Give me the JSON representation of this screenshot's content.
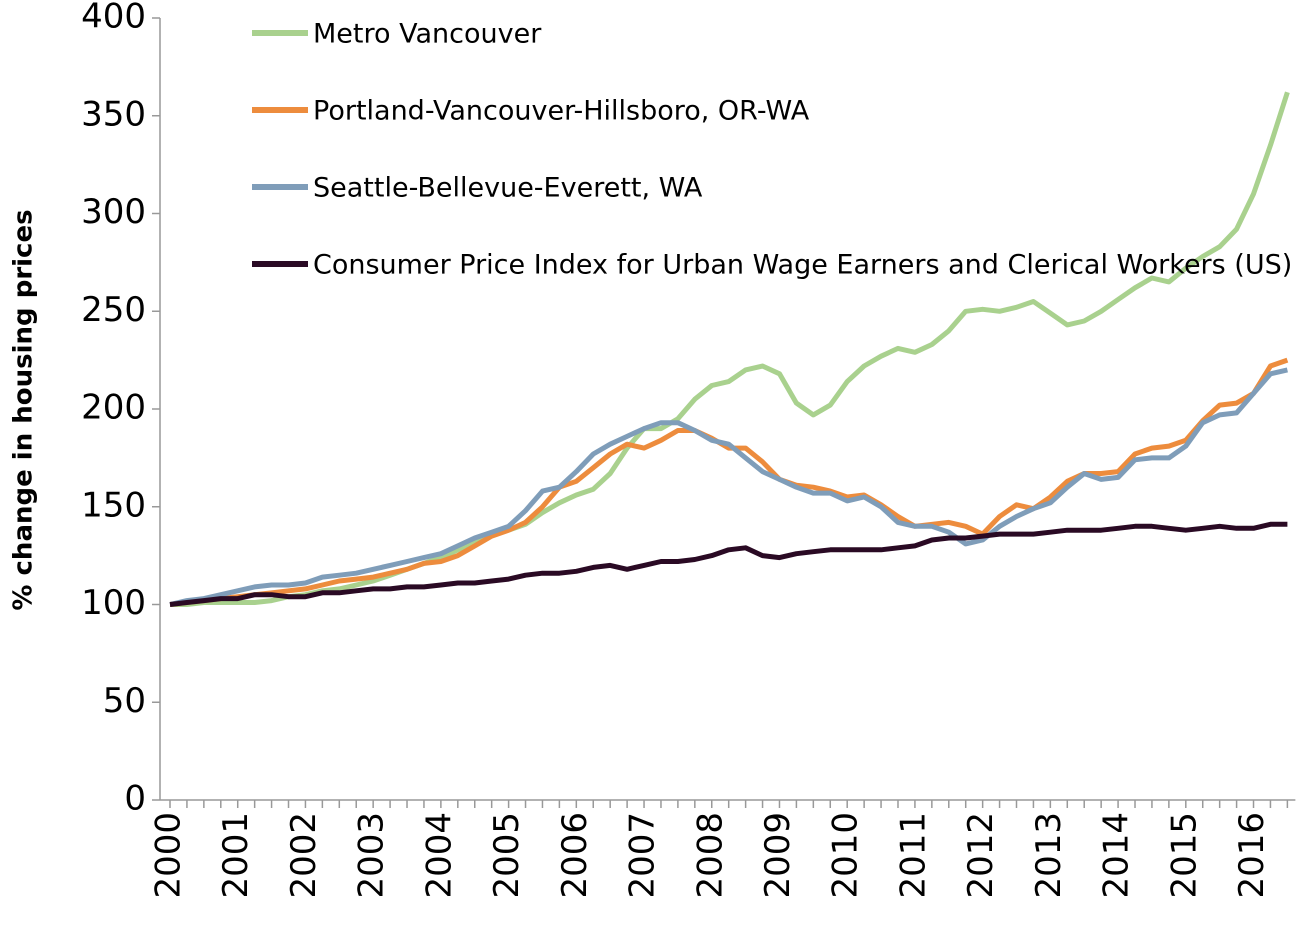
{
  "chart_data": {
    "type": "line",
    "y_label": "% change in housing prices",
    "categories": [
      "2000",
      null,
      null,
      null,
      "2001",
      null,
      null,
      null,
      "2002",
      null,
      null,
      null,
      "2003",
      null,
      null,
      null,
      "2004",
      null,
      null,
      null,
      "2005",
      null,
      null,
      null,
      "2006",
      null,
      null,
      null,
      "2007",
      null,
      null,
      null,
      "2008",
      null,
      null,
      null,
      "2009",
      null,
      null,
      null,
      "2010",
      null,
      null,
      null,
      "2011",
      null,
      null,
      null,
      "2012",
      null,
      null,
      null,
      "2013",
      null,
      null,
      null,
      "2014",
      null,
      null,
      null,
      "2015",
      null,
      null,
      null,
      "2016",
      null,
      null
    ],
    "ylim": [
      0,
      400
    ],
    "yticks": [
      0,
      50,
      100,
      150,
      200,
      250,
      300,
      350,
      400
    ],
    "grid": false,
    "series": [
      {
        "name": "Metro Vancouver",
        "color": "#a9d18e",
        "values": [
          100,
          100,
          101,
          101,
          101,
          101,
          102,
          104,
          105,
          107,
          108,
          110,
          112,
          115,
          118,
          121,
          124,
          128,
          132,
          136,
          138,
          141,
          147,
          152,
          156,
          159,
          167,
          180,
          190,
          190,
          195,
          205,
          212,
          214,
          220,
          222,
          218,
          203,
          197,
          202,
          214,
          222,
          227,
          231,
          229,
          233,
          240,
          250,
          251,
          250,
          252,
          255,
          249,
          243,
          245,
          250,
          256,
          262,
          267,
          265,
          272,
          278,
          283,
          292,
          310,
          335,
          362
        ]
      },
      {
        "name": "Portland-Vancouver-Hillsboro, OR-WA",
        "color": "#ed8c3d",
        "values": [
          100,
          101,
          102,
          103,
          104,
          105,
          106,
          107,
          108,
          110,
          112,
          113,
          114,
          116,
          118,
          121,
          122,
          125,
          130,
          135,
          138,
          142,
          150,
          160,
          163,
          170,
          177,
          182,
          180,
          184,
          189,
          189,
          185,
          180,
          180,
          173,
          164,
          161,
          160,
          158,
          155,
          156,
          151,
          145,
          140,
          141,
          142,
          140,
          136,
          145,
          151,
          149,
          155,
          163,
          167,
          167,
          168,
          177,
          180,
          181,
          184,
          194,
          202,
          203,
          208,
          222,
          225
        ]
      },
      {
        "name": "Seattle-Bellevue-Everett, WA",
        "color": "#7f9db9",
        "values": [
          100,
          102,
          103,
          105,
          107,
          109,
          110,
          110,
          111,
          114,
          115,
          116,
          118,
          120,
          122,
          124,
          126,
          130,
          134,
          137,
          140,
          148,
          158,
          160,
          168,
          177,
          182,
          186,
          190,
          193,
          193,
          189,
          184,
          182,
          175,
          168,
          164,
          160,
          157,
          157,
          153,
          155,
          150,
          142,
          140,
          140,
          137,
          131,
          133,
          140,
          145,
          149,
          152,
          160,
          167,
          164,
          165,
          174,
          175,
          175,
          181,
          193,
          197,
          198,
          208,
          218,
          220
        ]
      },
      {
        "name": "Consumer Price Index for Urban Wage Earners and Clerical Workers (US)",
        "color": "#2a0a24",
        "values": [
          100,
          101,
          102,
          103,
          103,
          105,
          105,
          104,
          104,
          106,
          106,
          107,
          108,
          108,
          109,
          109,
          110,
          111,
          111,
          112,
          113,
          115,
          116,
          116,
          117,
          119,
          120,
          118,
          120,
          122,
          122,
          123,
          125,
          128,
          129,
          125,
          124,
          126,
          127,
          128,
          128,
          128,
          128,
          129,
          130,
          133,
          134,
          134,
          135,
          136,
          136,
          136,
          137,
          138,
          138,
          138,
          139,
          140,
          140,
          139,
          138,
          139,
          140,
          139,
          139,
          141,
          141
        ]
      }
    ]
  }
}
